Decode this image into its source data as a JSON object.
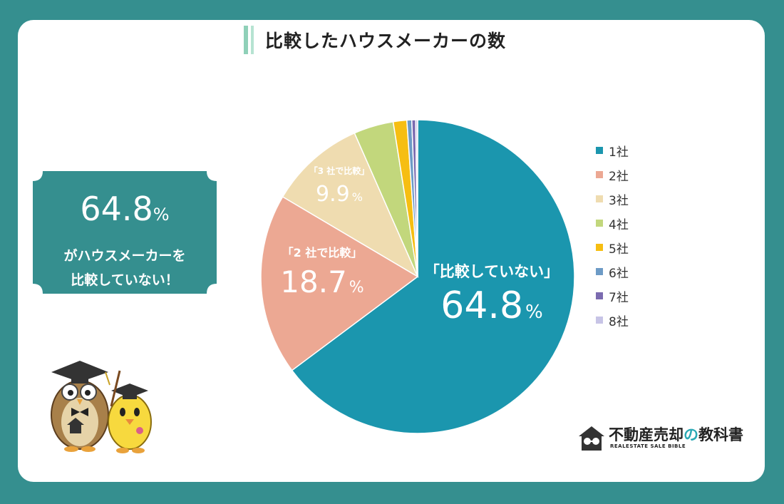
{
  "title": "比較したハウスメーカーの数",
  "callout": {
    "number": "64.8",
    "unit": "%",
    "line1": "がハウスメーカーを",
    "line2": "比較していない！"
  },
  "chart_data": {
    "type": "pie",
    "title": "比較したハウスメーカーの数",
    "categories": [
      "1社",
      "2社",
      "3社",
      "4社",
      "5社",
      "6社",
      "7社",
      "8社"
    ],
    "values": [
      64.8,
      18.7,
      9.9,
      4.1,
      1.4,
      0.5,
      0.4,
      0.2
    ],
    "colors": [
      "#1b96ae",
      "#eca893",
      "#efdcb0",
      "#c2d77c",
      "#f6be12",
      "#6d9bc6",
      "#7b6bb0",
      "#c7c4e6"
    ],
    "labels": [
      {
        "caption": "「比較していない」",
        "value": "64.8",
        "unit": "%"
      },
      {
        "caption": "「2 社で比較」",
        "value": "18.7",
        "unit": "%"
      },
      {
        "caption": "「3 社で比較」",
        "value": "9.9",
        "unit": "%"
      }
    ],
    "legend_position": "right"
  },
  "logo": {
    "name_part1": "不動産売却",
    "name_no": "の",
    "name_part2": "教科書",
    "subtitle": "REALESTATE SALE BIBLE"
  }
}
